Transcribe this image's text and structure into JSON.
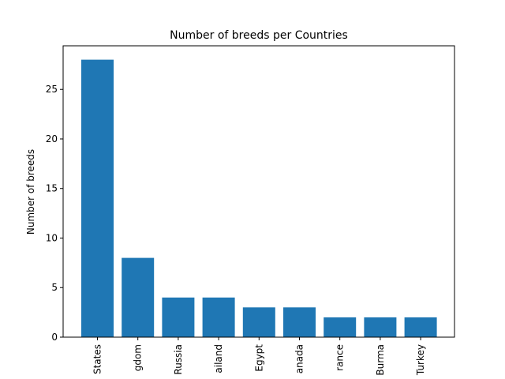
{
  "chart_data": {
    "type": "bar",
    "title": "Number of breeds per Countries",
    "xlabel": "",
    "ylabel": "Number of breeds",
    "categories": [
      "States",
      "gdom",
      "Russia",
      "ailand",
      "Egypt",
      "anada",
      "rance",
      "Burma",
      "Turkey"
    ],
    "values": [
      28,
      8,
      4,
      4,
      3,
      3,
      2,
      2,
      2
    ],
    "ylim": [
      0,
      29.4
    ],
    "yticks": [
      0,
      5,
      10,
      15,
      20,
      25
    ],
    "grid": false,
    "bar_color": "#1f77b4"
  }
}
